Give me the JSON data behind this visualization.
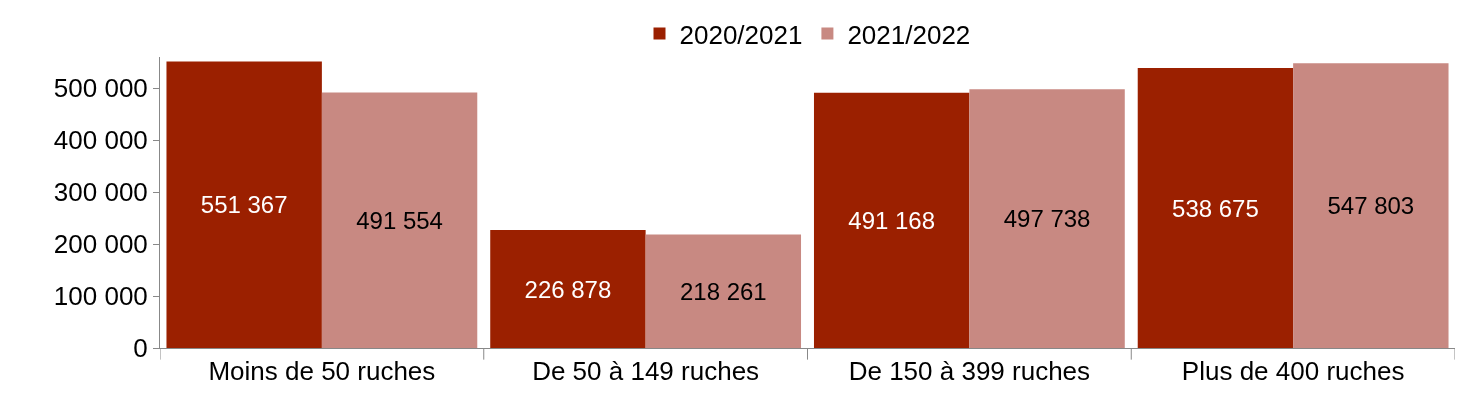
{
  "chart_data": {
    "type": "bar",
    "categories": [
      "Moins de 50 ruches",
      "De 50 à 149 ruches",
      "De 150 à 399 ruches",
      "Plus de 400 ruches"
    ],
    "series": [
      {
        "name": "2020/2021",
        "color": "#9b2000",
        "values": [
          551367,
          226878,
          491168,
          538675
        ],
        "value_labels": [
          "551 367",
          "226 878",
          "491 168",
          "538 675"
        ]
      },
      {
        "name": "2021/2022",
        "color": "#c88982",
        "values": [
          491554,
          218261,
          497738,
          547803
        ],
        "value_labels": [
          "491 554",
          "218 261",
          "497 738",
          "547 803"
        ]
      }
    ],
    "ylim": [
      0,
      560000
    ],
    "yticks": [
      {
        "value": 0,
        "label": "0"
      },
      {
        "value": 100000,
        "label": "100 000"
      },
      {
        "value": 200000,
        "label": "200 000"
      },
      {
        "value": 300000,
        "label": "300 000"
      },
      {
        "value": 400000,
        "label": "400 000"
      },
      {
        "value": 500000,
        "label": "500 000"
      }
    ],
    "legend": "top"
  }
}
